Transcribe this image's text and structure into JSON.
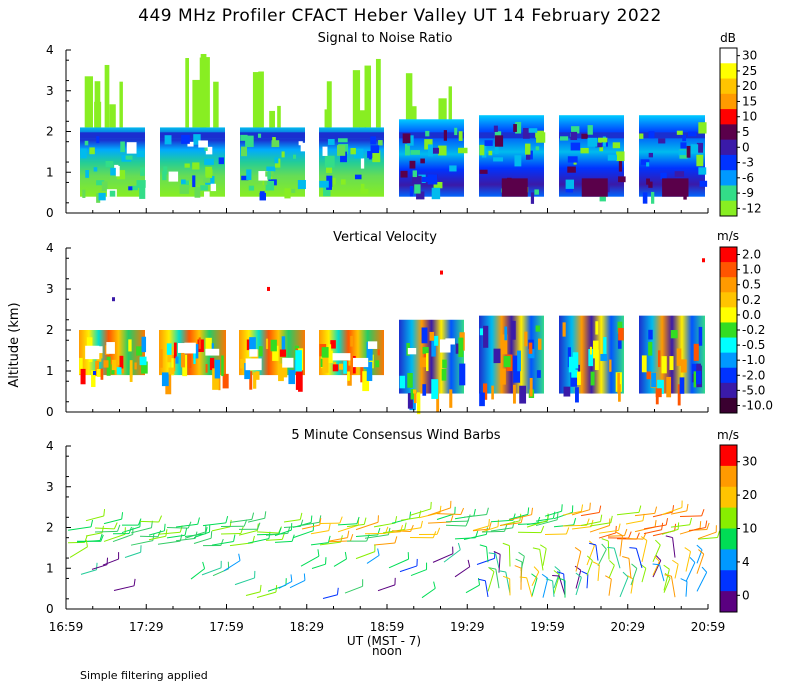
{
  "figure": {
    "title": "449 MHz Profiler CFACT Heber Valley UT 14 February 2022",
    "ylabel": "Altitude (km)",
    "xlabel": "UT (MST - 7)",
    "noon_label": "noon",
    "footer": "Simple filtering applied"
  },
  "chart_data": [
    {
      "type": "heatmap",
      "title": "Signal to Noise Ratio",
      "xlabel": "UT (MST - 7)",
      "ylabel": "Altitude (km)",
      "ylim": [
        0,
        4
      ],
      "yticks": [
        "0",
        "1",
        "2",
        "3",
        "4"
      ],
      "x_tick_labels": [
        "16:59",
        "17:29",
        "17:59",
        "18:29",
        "18:59",
        "19:29",
        "19:59",
        "20:29",
        "20:59"
      ],
      "colorbar": {
        "unit": "dB",
        "labels": [
          "30",
          "25",
          "20",
          "15",
          "10",
          "5",
          "0",
          "-3",
          "-6",
          "-9",
          "-12"
        ],
        "colors": [
          "#ffffff",
          "#ffff00",
          "#ffc400",
          "#ff9a00",
          "#ff0000",
          "#5a004a",
          "#3a1aa8",
          "#0033ff",
          "#0099ff",
          "#33dd88",
          "#88ee22"
        ]
      },
      "data_blocks_x": [
        [
          "16:59",
          "17:29"
        ],
        [
          "17:29",
          "17:59"
        ],
        [
          "17:59",
          "18:29"
        ],
        [
          "18:29",
          "18:59"
        ],
        [
          "18:59",
          "19:29"
        ],
        [
          "19:29",
          "19:59"
        ],
        [
          "19:59",
          "20:29"
        ],
        [
          "20:29",
          "20:59"
        ]
      ]
    },
    {
      "type": "heatmap",
      "title": "Vertical Velocity",
      "ylabel": "Altitude (km)",
      "ylim": [
        0,
        4
      ],
      "yticks": [
        "0",
        "1",
        "2",
        "3",
        "4"
      ],
      "colorbar": {
        "unit": "m/s",
        "labels": [
          "2.0",
          "1.0",
          "0.5",
          "0.2",
          "0.0",
          "-0.2",
          "-0.5",
          "-1.0",
          "-2.0",
          "-5.0",
          "-10.0"
        ],
        "colors": [
          "#ff0000",
          "#ff5500",
          "#ff9a00",
          "#ffc400",
          "#ffff00",
          "#33dd22",
          "#00ffff",
          "#0099ff",
          "#0033ff",
          "#3a1aa8",
          "#3a0030"
        ]
      }
    },
    {
      "type": "wind_barbs",
      "title": "5 Minute Consensus Wind Barbs",
      "ylim": [
        0,
        4
      ],
      "yticks": [
        "0",
        "1",
        "2",
        "3",
        "4"
      ],
      "colorbar": {
        "unit": "m/s",
        "labels": [
          "30",
          "20",
          "10",
          "4",
          "0"
        ],
        "colors": [
          "#ff0000",
          "#ff9a00",
          "#ffc400",
          "#88ee00",
          "#00dd55",
          "#0099ff",
          "#0033ff",
          "#5a0080"
        ]
      }
    }
  ]
}
